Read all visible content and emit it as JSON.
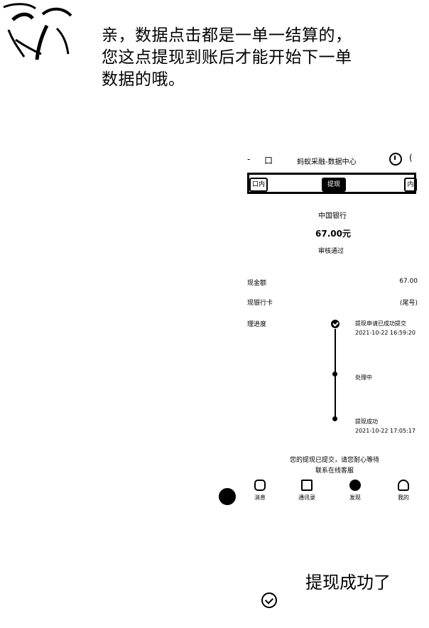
{
  "message": {
    "line1": "亲，数据点击都是一单一结算的，",
    "line2": "您这点提现到账后才能开始下一单",
    "line3": "数据的哦。"
  },
  "embedded_screenshot": {
    "header": {
      "back_glyph": "-",
      "icon_glyph": "口",
      "title": "蚂蚁采融-数据中心",
      "edge_glyph": "("
    },
    "banner": {
      "left_tab": "口内",
      "middle_tab": "提现",
      "right_tab": "内"
    },
    "bank_name": "中国银行",
    "amount": "67.00元",
    "status": "审核通过",
    "rows": [
      {
        "label": "现金额",
        "value": "67.00"
      },
      {
        "label": "现银行卡",
        "value": "(尾号)"
      },
      {
        "label": "理进度",
        "value": ""
      }
    ],
    "timeline": [
      {
        "title": "提现申请已成功提交",
        "time": "2021-10-22 16:59:20"
      },
      {
        "title": "处理中",
        "time": ""
      },
      {
        "title": "提现成功",
        "time": "2021-10-22 17:05:17"
      }
    ],
    "notice": {
      "line1": "您的提现已提交，请您耐心等待",
      "line2": "联系在线客服"
    },
    "nav": [
      {
        "label": "消息"
      },
      {
        "label": "通讯录"
      },
      {
        "label": "发现"
      },
      {
        "label": "我的"
      }
    ],
    "icons": [
      "back-icon",
      "clock-icon",
      "message-icon",
      "contacts-icon",
      "discover-icon",
      "profile-icon"
    ]
  },
  "reply": {
    "text": "提现成功了"
  }
}
